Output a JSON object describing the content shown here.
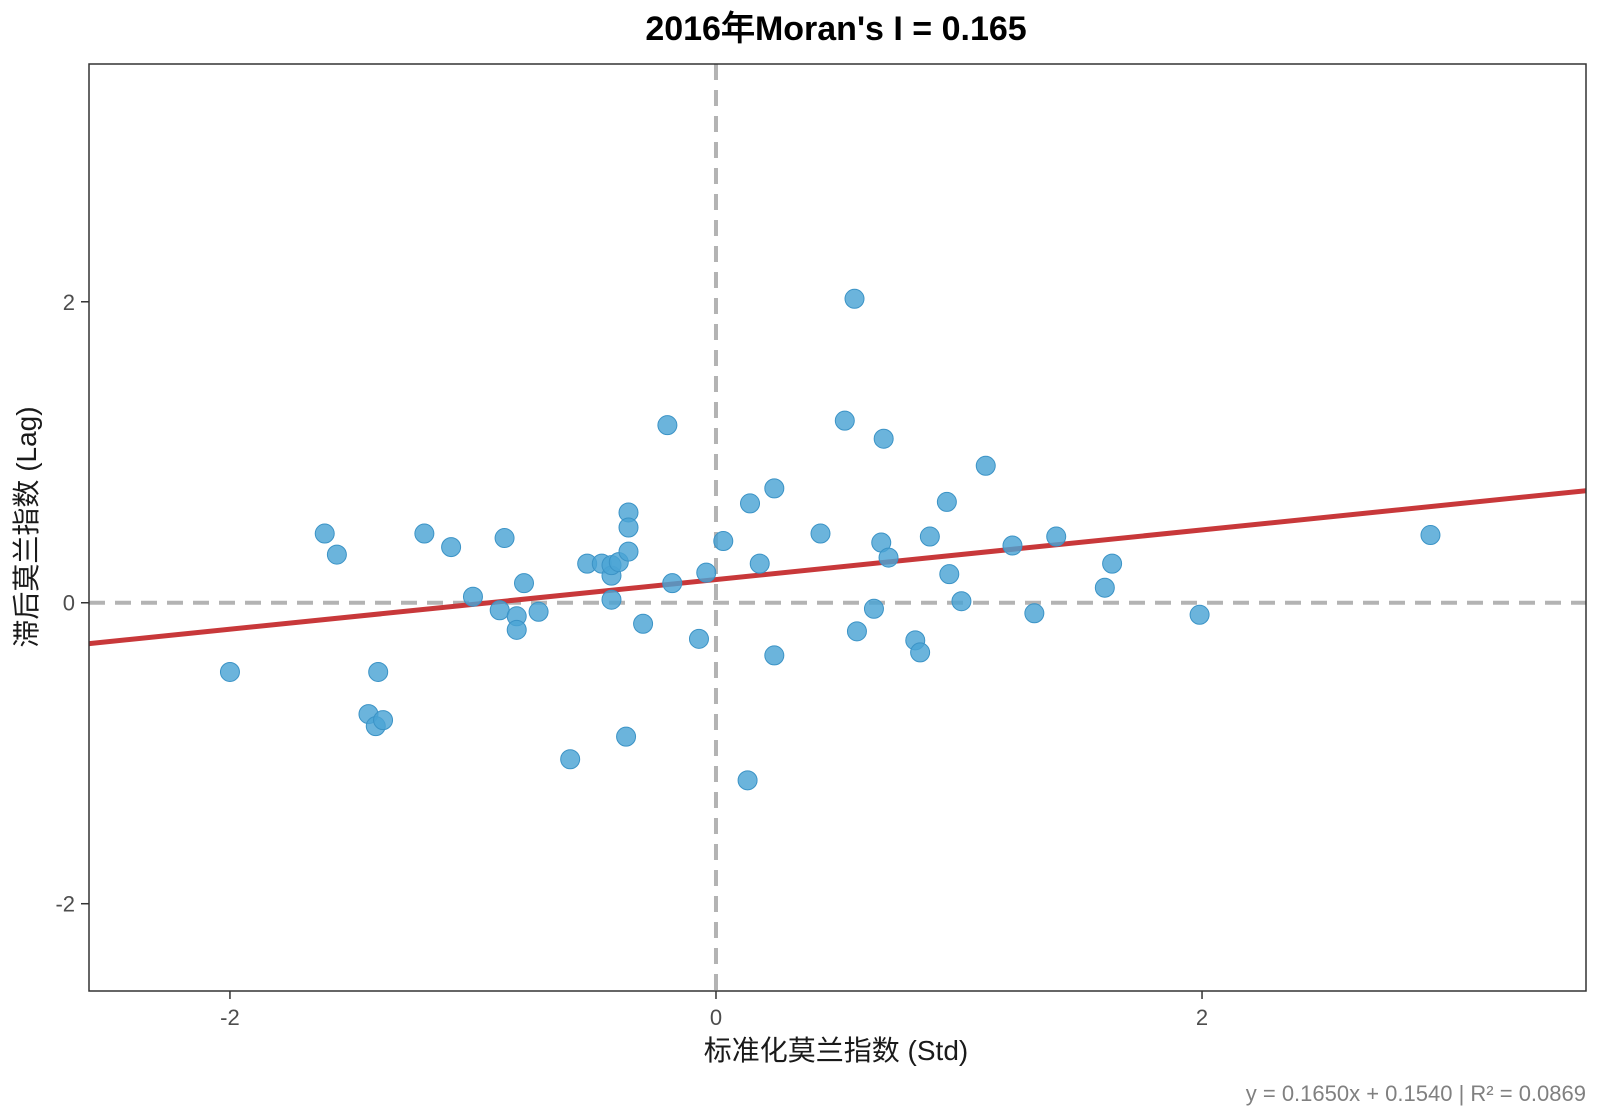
{
  "chart_data": {
    "type": "scatter",
    "title": "2016年Moran's I = 0.165",
    "xlabel": "标准化莫兰指数 (Std)",
    "ylabel": "滞后莫兰指数 (Lag)",
    "caption": "y = 0.1650x + 0.1540 | R² = 0.0869",
    "xlim": [
      -2.58,
      3.58
    ],
    "ylim": [
      -2.58,
      3.58
    ],
    "x_ticks": [
      {
        "value": -2,
        "label": "-2"
      },
      {
        "value": 0,
        "label": "0"
      },
      {
        "value": 2,
        "label": "2"
      }
    ],
    "y_ticks": [
      {
        "value": -2,
        "label": "-2"
      },
      {
        "value": 0,
        "label": "0"
      },
      {
        "value": 2,
        "label": "2"
      }
    ],
    "grid": false,
    "reference_lines": {
      "x": 0,
      "y": 0,
      "style": "dashed",
      "color": "#b3b3b3"
    },
    "fit_line": {
      "slope": 0.165,
      "intercept": 0.154,
      "color": "#c8383a"
    },
    "point_color": "#4aa3d4",
    "points": [
      {
        "x": -2.0,
        "y": -0.46
      },
      {
        "x": -1.61,
        "y": 0.46
      },
      {
        "x": -1.56,
        "y": 0.32
      },
      {
        "x": -1.43,
        "y": -0.74
      },
      {
        "x": -1.4,
        "y": -0.82
      },
      {
        "x": -1.39,
        "y": -0.46
      },
      {
        "x": -1.37,
        "y": -0.78
      },
      {
        "x": -1.2,
        "y": 0.46
      },
      {
        "x": -1.09,
        "y": 0.37
      },
      {
        "x": -1.0,
        "y": 0.04
      },
      {
        "x": -0.89,
        "y": -0.05
      },
      {
        "x": -0.87,
        "y": 0.43
      },
      {
        "x": -0.82,
        "y": -0.09
      },
      {
        "x": -0.82,
        "y": -0.18
      },
      {
        "x": -0.79,
        "y": 0.13
      },
      {
        "x": -0.73,
        "y": -0.06
      },
      {
        "x": -0.6,
        "y": -1.04
      },
      {
        "x": -0.53,
        "y": 0.26
      },
      {
        "x": -0.47,
        "y": 0.26
      },
      {
        "x": -0.43,
        "y": 0.18
      },
      {
        "x": -0.43,
        "y": 0.25
      },
      {
        "x": -0.43,
        "y": 0.02
      },
      {
        "x": -0.4,
        "y": 0.27
      },
      {
        "x": -0.37,
        "y": -0.89
      },
      {
        "x": -0.36,
        "y": 0.6
      },
      {
        "x": -0.36,
        "y": 0.5
      },
      {
        "x": -0.36,
        "y": 0.34
      },
      {
        "x": -0.3,
        "y": -0.14
      },
      {
        "x": -0.2,
        "y": 1.18
      },
      {
        "x": -0.18,
        "y": 0.13
      },
      {
        "x": -0.07,
        "y": -0.24
      },
      {
        "x": -0.04,
        "y": 0.2
      },
      {
        "x": 0.03,
        "y": 0.41
      },
      {
        "x": 0.13,
        "y": -1.18
      },
      {
        "x": 0.14,
        "y": 0.66
      },
      {
        "x": 0.18,
        "y": 0.26
      },
      {
        "x": 0.24,
        "y": -0.35
      },
      {
        "x": 0.24,
        "y": 0.76
      },
      {
        "x": 0.43,
        "y": 0.46
      },
      {
        "x": 0.53,
        "y": 1.21
      },
      {
        "x": 0.57,
        "y": 2.02
      },
      {
        "x": 0.58,
        "y": -0.19
      },
      {
        "x": 0.65,
        "y": -0.04
      },
      {
        "x": 0.68,
        "y": 0.4
      },
      {
        "x": 0.69,
        "y": 1.09
      },
      {
        "x": 0.71,
        "y": 0.3
      },
      {
        "x": 0.82,
        "y": -0.25
      },
      {
        "x": 0.84,
        "y": -0.33
      },
      {
        "x": 0.88,
        "y": 0.44
      },
      {
        "x": 0.95,
        "y": 0.67
      },
      {
        "x": 0.96,
        "y": 0.19
      },
      {
        "x": 1.01,
        "y": 0.01
      },
      {
        "x": 1.11,
        "y": 0.91
      },
      {
        "x": 1.22,
        "y": 0.38
      },
      {
        "x": 1.31,
        "y": -0.07
      },
      {
        "x": 1.4,
        "y": 0.44
      },
      {
        "x": 1.6,
        "y": 0.1
      },
      {
        "x": 1.63,
        "y": 0.26
      },
      {
        "x": 1.99,
        "y": -0.08
      },
      {
        "x": 2.94,
        "y": 0.45
      }
    ]
  }
}
